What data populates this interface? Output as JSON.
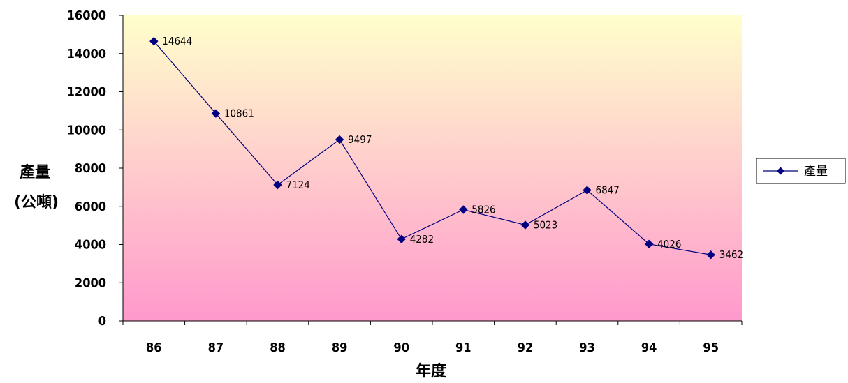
{
  "chart_data": {
    "type": "line",
    "title": "",
    "xlabel": "年度",
    "ylabel_lines": [
      "產量",
      "(公噸)"
    ],
    "categories": [
      "86",
      "87",
      "88",
      "89",
      "90",
      "91",
      "92",
      "93",
      "94",
      "95"
    ],
    "series": [
      {
        "name": "產量",
        "values": [
          14644,
          10861,
          7124,
          9497,
          4282,
          5826,
          5023,
          6847,
          4026,
          3462
        ],
        "color": "#000080"
      }
    ],
    "data_labels": [
      "14644",
      "10861",
      "7124",
      "9497",
      "4282",
      "5826",
      "5023",
      "6847",
      "4026",
      "3462"
    ],
    "ylim": [
      0,
      16000
    ],
    "yticks": [
      0,
      2000,
      4000,
      6000,
      8000,
      10000,
      12000,
      14000,
      16000
    ],
    "ytick_labels": [
      "0",
      "2000",
      "4000",
      "6000",
      "8000",
      "10000",
      "12000",
      "14000",
      "16000"
    ],
    "grid": false,
    "legend": "right",
    "background_gradient": [
      "#ffffcc",
      "#ff99cc"
    ]
  }
}
